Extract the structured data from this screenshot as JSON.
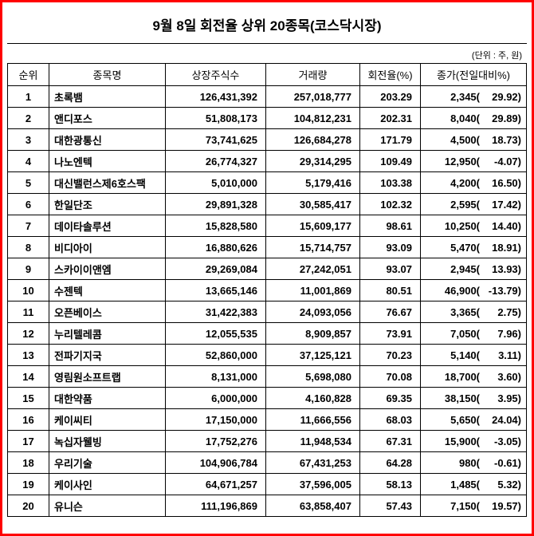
{
  "page": {
    "title": "9월 8일 회전율 상위 20종목(코스닥시장)",
    "unit_note": "(단위 : 주, 원)"
  },
  "colors": {
    "frame_red": "#ff0000",
    "grid_black": "#000000",
    "text": "#000000",
    "background": "#ffffff"
  },
  "chart_data": {
    "type": "table",
    "title": "9월 8일 회전율 상위 20종목(코스닥시장)",
    "unit_note": "(단위 : 주, 원)",
    "columns": [
      "순위",
      "종목명",
      "상장주식수",
      "거래량",
      "회전율(%)",
      "종가(전일대비%)"
    ],
    "rows": [
      {
        "rank": "1",
        "name": "초록뱀",
        "shares": "126,431,392",
        "volume": "257,018,777",
        "turnover": "203.29",
        "close": "2,345",
        "change_pct": "29.92"
      },
      {
        "rank": "2",
        "name": "앤디포스",
        "shares": "51,808,173",
        "volume": "104,812,231",
        "turnover": "202.31",
        "close": "8,040",
        "change_pct": "29.89"
      },
      {
        "rank": "3",
        "name": "대한광통신",
        "shares": "73,741,625",
        "volume": "126,684,278",
        "turnover": "171.79",
        "close": "4,500",
        "change_pct": "18.73"
      },
      {
        "rank": "4",
        "name": "나노엔텍",
        "shares": "26,774,327",
        "volume": "29,314,295",
        "turnover": "109.49",
        "close": "12,950",
        "change_pct": "-4.07"
      },
      {
        "rank": "5",
        "name": "대신밸런스제6호스팩",
        "shares": "5,010,000",
        "volume": "5,179,416",
        "turnover": "103.38",
        "close": "4,200",
        "change_pct": "16.50"
      },
      {
        "rank": "6",
        "name": "한일단조",
        "shares": "29,891,328",
        "volume": "30,585,417",
        "turnover": "102.32",
        "close": "2,595",
        "change_pct": "17.42"
      },
      {
        "rank": "7",
        "name": "데이타솔루션",
        "shares": "15,828,580",
        "volume": "15,609,177",
        "turnover": "98.61",
        "close": "10,250",
        "change_pct": "14.40"
      },
      {
        "rank": "8",
        "name": "비디아이",
        "shares": "16,880,626",
        "volume": "15,714,757",
        "turnover": "93.09",
        "close": "5,470",
        "change_pct": "18.91"
      },
      {
        "rank": "9",
        "name": "스카이이앤엠",
        "shares": "29,269,084",
        "volume": "27,242,051",
        "turnover": "93.07",
        "close": "2,945",
        "change_pct": "13.93"
      },
      {
        "rank": "10",
        "name": "수젠텍",
        "shares": "13,665,146",
        "volume": "11,001,869",
        "turnover": "80.51",
        "close": "46,900",
        "change_pct": "-13.79"
      },
      {
        "rank": "11",
        "name": "오픈베이스",
        "shares": "31,422,383",
        "volume": "24,093,056",
        "turnover": "76.67",
        "close": "3,365",
        "change_pct": "2.75"
      },
      {
        "rank": "12",
        "name": "누리텔레콤",
        "shares": "12,055,535",
        "volume": "8,909,857",
        "turnover": "73.91",
        "close": "7,050",
        "change_pct": "7.96"
      },
      {
        "rank": "13",
        "name": "전파기지국",
        "shares": "52,860,000",
        "volume": "37,125,121",
        "turnover": "70.23",
        "close": "5,140",
        "change_pct": "3.11"
      },
      {
        "rank": "14",
        "name": "영림원소프트랩",
        "shares": "8,131,000",
        "volume": "5,698,080",
        "turnover": "70.08",
        "close": "18,700",
        "change_pct": "3.60"
      },
      {
        "rank": "15",
        "name": "대한약품",
        "shares": "6,000,000",
        "volume": "4,160,828",
        "turnover": "69.35",
        "close": "38,150",
        "change_pct": "3.95"
      },
      {
        "rank": "16",
        "name": "케이씨티",
        "shares": "17,150,000",
        "volume": "11,666,556",
        "turnover": "68.03",
        "close": "5,650",
        "change_pct": "24.04"
      },
      {
        "rank": "17",
        "name": "녹십자웰빙",
        "shares": "17,752,276",
        "volume": "11,948,534",
        "turnover": "67.31",
        "close": "15,900",
        "change_pct": "-3.05"
      },
      {
        "rank": "18",
        "name": "우리기술",
        "shares": "104,906,784",
        "volume": "67,431,253",
        "turnover": "64.28",
        "close": "980",
        "change_pct": "-0.61"
      },
      {
        "rank": "19",
        "name": "케이사인",
        "shares": "64,671,257",
        "volume": "37,596,005",
        "turnover": "58.13",
        "close": "1,485",
        "change_pct": "5.32"
      },
      {
        "rank": "20",
        "name": "유니슨",
        "shares": "111,196,869",
        "volume": "63,858,407",
        "turnover": "57.43",
        "close": "7,150",
        "change_pct": "19.57"
      }
    ]
  }
}
